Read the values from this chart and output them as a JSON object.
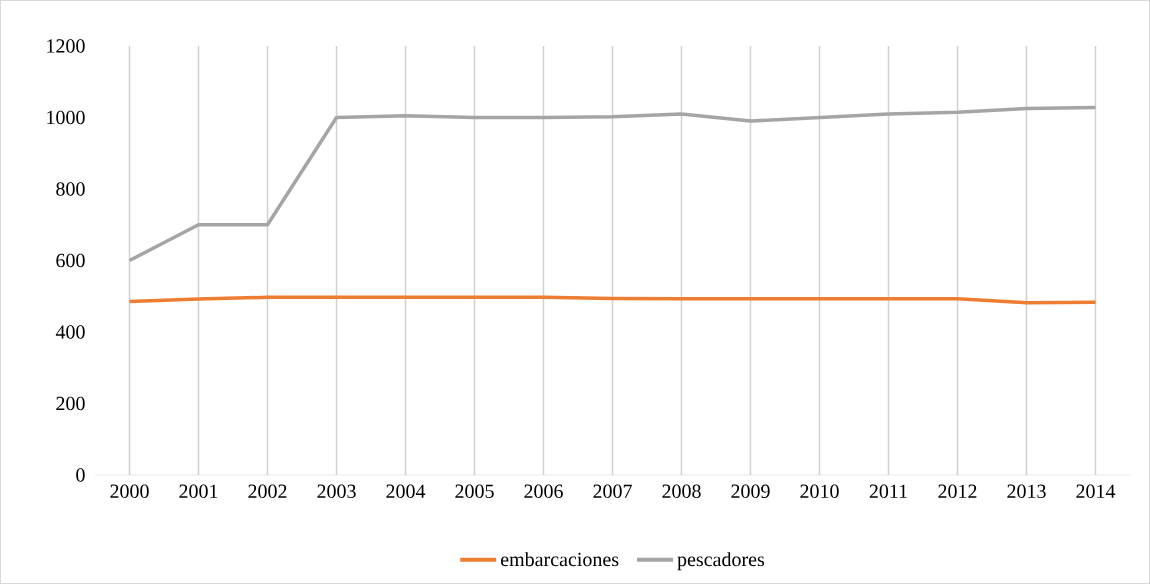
{
  "chart_data": {
    "type": "line",
    "categories": [
      "2000",
      "2001",
      "2002",
      "2003",
      "2004",
      "2005",
      "2006",
      "2007",
      "2008",
      "2009",
      "2010",
      "2011",
      "2012",
      "2013",
      "2014"
    ],
    "series": [
      {
        "name": "embarcaciones",
        "color": "#ed7d31",
        "values": [
          485,
          492,
          497,
          497,
          497,
          497,
          497,
          494,
          493,
          493,
          493,
          493,
          493,
          482,
          483
        ]
      },
      {
        "name": "pescadores",
        "color": "#a5a5a5",
        "values": [
          600,
          700,
          700,
          1000,
          1005,
          1000,
          1000,
          1002,
          1010,
          990,
          1000,
          1010,
          1015,
          1025,
          1028
        ]
      }
    ],
    "ylim": [
      0,
      1200
    ],
    "yticks": [
      0,
      200,
      400,
      600,
      800,
      1000,
      1200
    ],
    "grid": "x",
    "legend": "bottom",
    "marker": "none",
    "line_style": "solid"
  }
}
